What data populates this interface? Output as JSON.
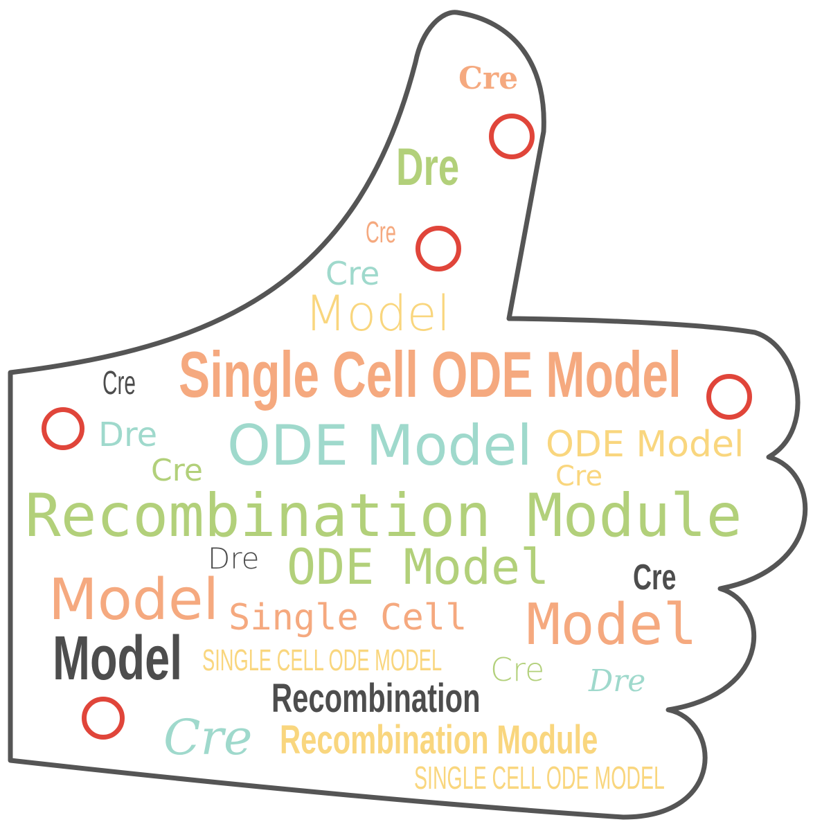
{
  "colors": {
    "outline": "#555555",
    "orange": "#f5a97f",
    "green": "#b2d07a",
    "teal": "#9fd9cc",
    "yellow": "#f9d67e",
    "gray": "#4d4d4d",
    "red": "#e0453a"
  },
  "words": {
    "cre_top": "Cre",
    "dre_top": "Dre",
    "cre_small_1": "Cre",
    "cre_teal_1": "Cre",
    "model_thin": "Model",
    "single_cell_ode_model_big": "Single Cell ODE Model",
    "cre_left": "Cre",
    "dre_left": "Dre",
    "ode_model_teal": "ODE Model",
    "ode_model_yellow": "ODE Model",
    "cre_green_left": "Cre",
    "cre_yellow_right": "Cre",
    "recombination_module_big": "Recombination Module",
    "dre_gray": "Dre",
    "ode_model_mono": "ODE Model",
    "cre_gray_right": "Cre",
    "model_orange_left": "Model",
    "single_cell_mono": "Single Cell",
    "model_orange_right": "Model",
    "model_gray": "Model",
    "single_cell_ode_model_caps_1": "SINGLE CELL ODE MODEL",
    "cre_green_right": "Cre",
    "dre_teal_script": "Dre",
    "recombination_gray": "Recombination",
    "cre_teal_script": "Cre",
    "recombination_module_yellow": "Recombination Module",
    "single_cell_ode_model_caps_2": "SINGLE CELL ODE MODEL"
  }
}
